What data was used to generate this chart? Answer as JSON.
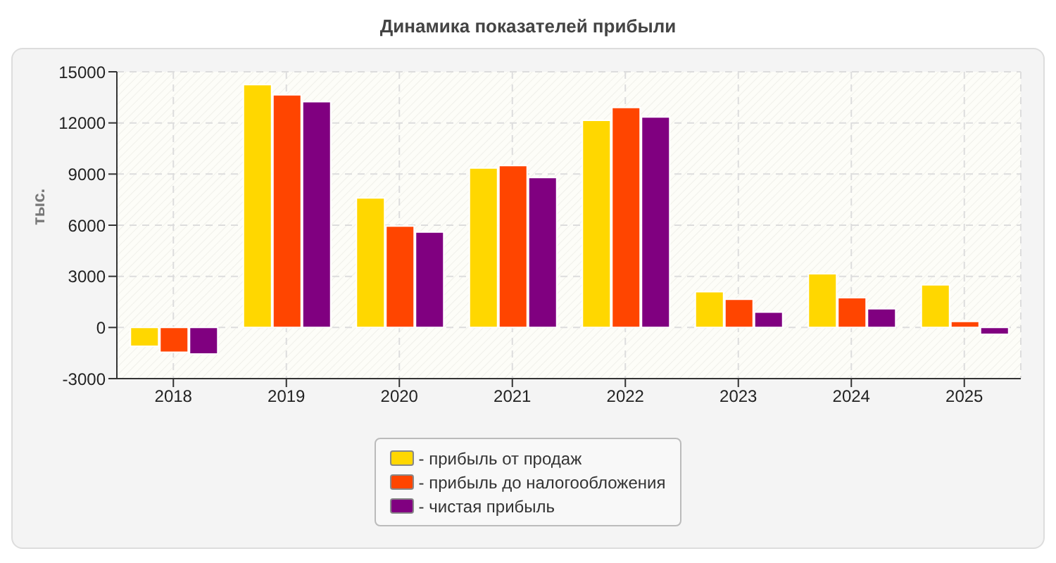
{
  "chart_data": {
    "type": "bar",
    "title": "Динамика показателей прибыли",
    "ylabel": "тыс.",
    "categories": [
      "2018",
      "2019",
      "2020",
      "2021",
      "2022",
      "2023",
      "2024",
      "2025"
    ],
    "series": [
      {
        "name": "- прибыль от продаж",
        "color": "#ffd700",
        "values": [
          -1100,
          14250,
          7600,
          9350,
          12150,
          2100,
          3150,
          2500
        ]
      },
      {
        "name": "- прибыль до налогообложения",
        "color": "#ff4500",
        "values": [
          -1450,
          13650,
          5950,
          9500,
          12900,
          1650,
          1750,
          350
        ]
      },
      {
        "name": "- чистая прибыль",
        "color": "#800080",
        "values": [
          -1550,
          13250,
          5600,
          8800,
          12350,
          900,
          1100,
          -400
        ]
      }
    ],
    "ylim": [
      -3000,
      15000
    ],
    "yticks": [
      -3000,
      0,
      3000,
      6000,
      9000,
      12000,
      15000
    ],
    "grid": true,
    "legend": "bottom"
  }
}
